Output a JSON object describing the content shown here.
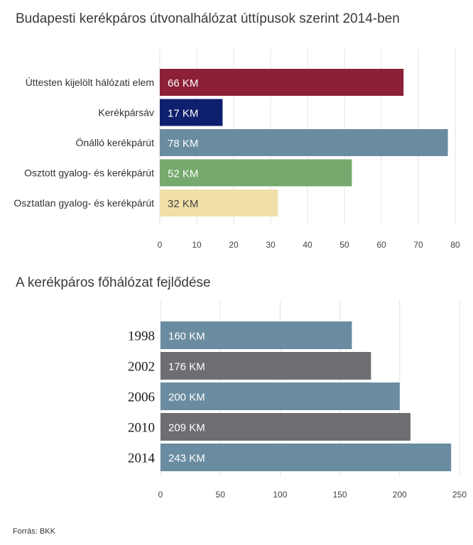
{
  "source_label": "Forrás: BKK",
  "chart_data": [
    {
      "type": "bar",
      "orientation": "horizontal",
      "title": "Budapesti kerékpáros útvonalhálózat úttípusok szerint 2014-ben",
      "categories": [
        "Úttesten kijelölt hálózati elem",
        "Kerékpársáv",
        "Önálló kerékpárút",
        "Osztott gyalog- és kerékpárút",
        "Osztatlan gyalog- és kerékpárút"
      ],
      "values": [
        66,
        17,
        78,
        52,
        32
      ],
      "data_labels": [
        "66 KM",
        "17 KM",
        "78 KM",
        "52 KM",
        "32 KM"
      ],
      "colors": [
        "#8b2036",
        "#0e1f6e",
        "#6a8ca0",
        "#76a96c",
        "#f0e0a8"
      ],
      "label_colors": [
        "#ffffff",
        "#ffffff",
        "#ffffff",
        "#ffffff",
        "#444444"
      ],
      "xlim": [
        0,
        80
      ],
      "ticks": [
        0,
        10,
        20,
        30,
        40,
        50,
        60,
        70,
        80
      ],
      "grid": true
    },
    {
      "type": "bar",
      "orientation": "horizontal",
      "title": "A kerékpáros főhálózat fejlődése",
      "categories": [
        "1998",
        "2002",
        "2006",
        "2010",
        "2014"
      ],
      "values": [
        160,
        176,
        200,
        209,
        243
      ],
      "data_labels": [
        "160 KM",
        "176 KM",
        "200 KM",
        "209 KM",
        "243 KM"
      ],
      "colors": [
        "#6a8ca0",
        "#6d6e71",
        "#6a8ca0",
        "#6d6e71",
        "#6a8ca0"
      ],
      "label_colors": [
        "#ffffff",
        "#ffffff",
        "#ffffff",
        "#ffffff",
        "#ffffff"
      ],
      "xlim": [
        0,
        250
      ],
      "ticks": [
        0,
        50,
        100,
        150,
        200,
        250
      ],
      "grid": true
    }
  ]
}
